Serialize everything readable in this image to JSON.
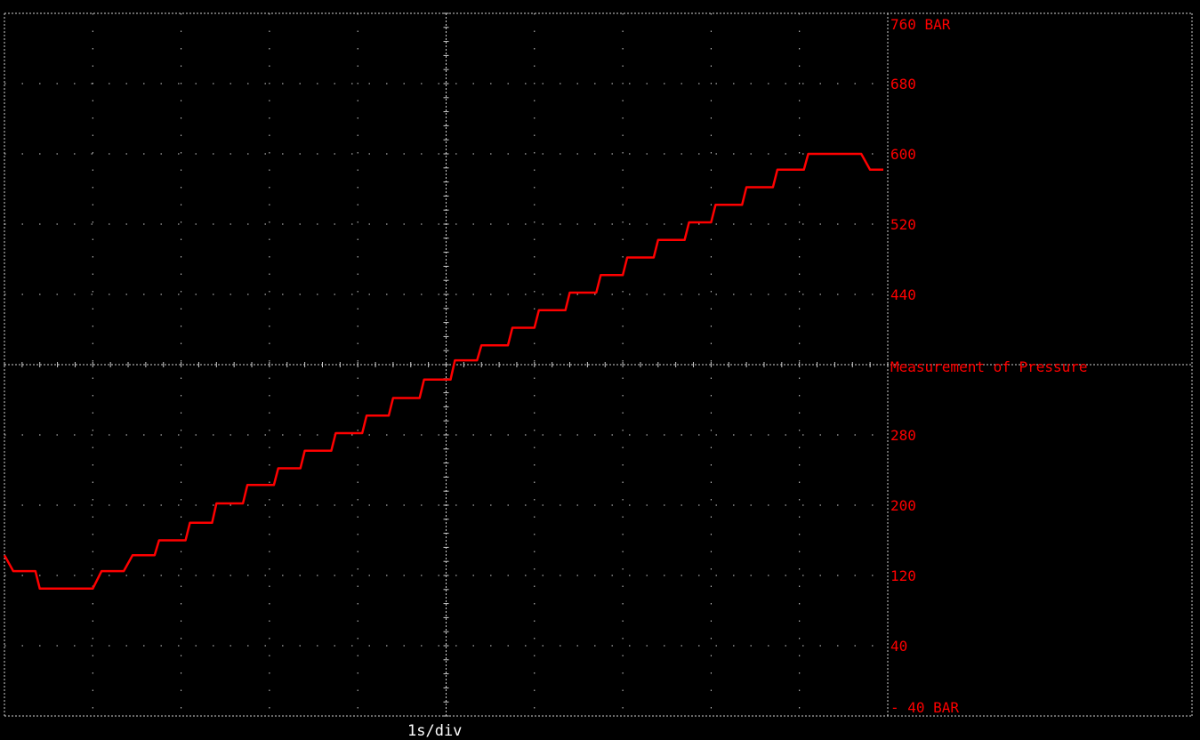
{
  "chart_data": {
    "type": "line",
    "title": "",
    "xlabel": "1s/div",
    "ylabel": "Measurement of Pressure",
    "ylim": [
      -40,
      760
    ],
    "y_unit": "BAR",
    "grid": true,
    "y_tick_labels": [
      {
        "value": 760,
        "label": "760 BAR"
      },
      {
        "value": 680,
        "label": "680"
      },
      {
        "value": 600,
        "label": "600"
      },
      {
        "value": 520,
        "label": "520"
      },
      {
        "value": 440,
        "label": "440"
      },
      {
        "value": 280,
        "label": "280"
      },
      {
        "value": 200,
        "label": "200"
      },
      {
        "value": 120,
        "label": "120"
      },
      {
        "value": 40,
        "label": "40"
      },
      {
        "value": -40,
        "label": "- 40 BAR"
      }
    ],
    "x_seconds": [
      0,
      0.1,
      0.35,
      0.4,
      1.0,
      1.1,
      1.35,
      1.45,
      1.7,
      1.75,
      2.05,
      2.1,
      2.35,
      2.4,
      2.7,
      2.75,
      3.05,
      3.1,
      3.35,
      3.4,
      3.7,
      3.75,
      4.05,
      4.1,
      4.35,
      4.4,
      4.7,
      4.75,
      5.05,
      5.1,
      5.35,
      5.4,
      5.7,
      5.75,
      6.0,
      6.05,
      6.35,
      6.4,
      6.7,
      6.75,
      7.0,
      7.05,
      7.35,
      7.4,
      7.7,
      7.75,
      8.0,
      8.05,
      8.35,
      8.4,
      8.7,
      8.75,
      9.05,
      9.1,
      9.7,
      9.8,
      9.95
    ],
    "series": [
      {
        "values": [
          143,
          125,
          125,
          105,
          105,
          125,
          125,
          143,
          143,
          160,
          160,
          180,
          180,
          202,
          202,
          223,
          223,
          242,
          242,
          262,
          262,
          282,
          282,
          302,
          302,
          322,
          322,
          343,
          343,
          365,
          365,
          382,
          382,
          402,
          402,
          422,
          422,
          442,
          442,
          462,
          462,
          482,
          482,
          502,
          502,
          522,
          522,
          542,
          542,
          562,
          562,
          582,
          582,
          600,
          600,
          582,
          582
        ],
        "color": "#ff0000"
      }
    ]
  }
}
